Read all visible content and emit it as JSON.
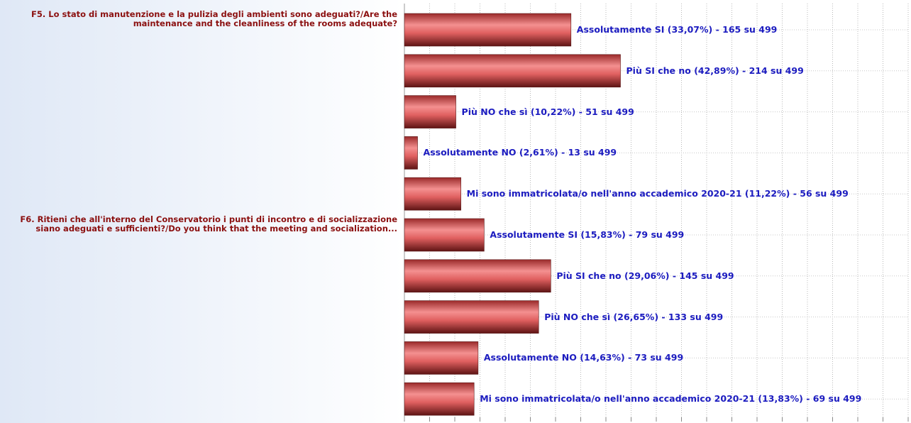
{
  "chart_data": {
    "type": "bar",
    "orientation": "horizontal",
    "categories": [
      "F5. Lo stato di manutenzione e la pulizia degli ambienti sono adeguati?/Are the maintenance and the cleanliness of the rooms adequate?",
      null,
      null,
      null,
      null,
      "F6. Ritieni che all'interno del Conservatorio i punti di incontro e di socializzazione siano adeguati e sufficienti?/Do you think that the meeting and socialization...",
      null,
      null,
      null,
      null
    ],
    "values": [
      33.07,
      42.89,
      10.22,
      2.61,
      11.22,
      15.83,
      29.06,
      26.65,
      14.63,
      13.83
    ],
    "value_labels": [
      "Assolutamente SI (33,07%) - 165 su 499",
      "Più SI che no (42,89%) - 214 su 499",
      "Più NO che sì (10,22%) - 51 su 499",
      "Assolutamente NO (2,61%) - 13 su 499",
      "Mi sono immatricolata/o nell'anno accademico 2020-21 (11,22%) - 56 su 499",
      "Assolutamente SI (15,83%) - 79 su 499",
      "Più SI che no (29,06%) - 145 su 499",
      "Più NO che sì (26,65%) - 133 su 499",
      "Assolutamente NO (14,63%) - 73 su 499",
      "Mi sono immatricolata/o nell'anno accademico 2020-21 (13,83%) - 69 su 499"
    ],
    "color": "#e06060",
    "xlim": [
      0,
      100
    ],
    "xticks": [
      0,
      5,
      10,
      15,
      20,
      25,
      30,
      35,
      40,
      45,
      50,
      55,
      60,
      65,
      70,
      75,
      80,
      85,
      90,
      95,
      100
    ],
    "grid": true
  }
}
